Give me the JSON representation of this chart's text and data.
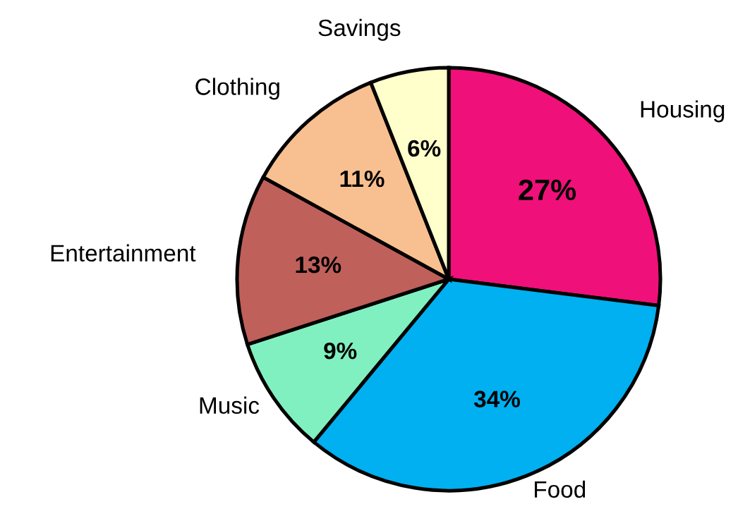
{
  "chart_data": {
    "type": "pie",
    "categories": [
      "Housing",
      "Food",
      "Music",
      "Entertainment",
      "Clothing",
      "Savings"
    ],
    "values": [
      27,
      34,
      9,
      13,
      11,
      6
    ],
    "colors": [
      "#f0107a",
      "#00b0f0",
      "#80f0c0",
      "#c0605a",
      "#f8c090",
      "#ffffcc"
    ],
    "value_labels": [
      "27%",
      "34%",
      "9%",
      "13%",
      "11%",
      "6%"
    ]
  }
}
